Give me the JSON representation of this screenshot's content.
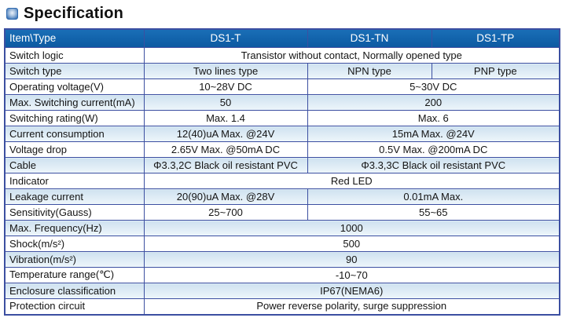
{
  "page": {
    "title": "Specification"
  },
  "colors": {
    "header_bg": "#1263ab",
    "border": "#3c4fa1",
    "shade_top": "#cfe2f0",
    "shade_bottom": "#eef6fb"
  },
  "table": {
    "header": {
      "item_col": "Item\\Type",
      "types": [
        "DS1-T",
        "DS1-TN",
        "DS1-TP"
      ]
    },
    "rows": [
      {
        "label": "Switch logic",
        "shaded": false,
        "cells": [
          {
            "text": "Transistor without contact, Normally opened type",
            "span": 3
          }
        ]
      },
      {
        "label": "Switch type",
        "shaded": true,
        "cells": [
          {
            "text": "Two lines type",
            "span": 1
          },
          {
            "text": "NPN type",
            "span": 1
          },
          {
            "text": "PNP type",
            "span": 1
          }
        ]
      },
      {
        "label": "Operating voltage(V)",
        "shaded": false,
        "cells": [
          {
            "text": "10~28V DC",
            "span": 1
          },
          {
            "text": "5~30V DC",
            "span": 2
          }
        ]
      },
      {
        "label": "Max. Switching current(mA)",
        "shaded": true,
        "cells": [
          {
            "text": "50",
            "span": 1
          },
          {
            "text": "200",
            "span": 2
          }
        ]
      },
      {
        "label": "Switching rating(W)",
        "shaded": false,
        "cells": [
          {
            "text": "Max. 1.4",
            "span": 1
          },
          {
            "text": "Max. 6",
            "span": 2
          }
        ]
      },
      {
        "label": "Current consumption",
        "shaded": true,
        "cells": [
          {
            "text": "12(40)uA Max. @24V",
            "span": 1
          },
          {
            "text": "15mA Max. @24V",
            "span": 2
          }
        ]
      },
      {
        "label": "Voltage drop",
        "shaded": false,
        "cells": [
          {
            "text": "2.65V Max. @50mA DC",
            "span": 1
          },
          {
            "text": "0.5V Max. @200mA DC",
            "span": 2
          }
        ]
      },
      {
        "label": "Cable",
        "shaded": true,
        "cells": [
          {
            "text": "Φ3.3,2C Black oil resistant PVC",
            "span": 1
          },
          {
            "text": "Φ3.3,3C Black oil resistant PVC",
            "span": 2
          }
        ]
      },
      {
        "label": "Indicator",
        "shaded": false,
        "cells": [
          {
            "text": "Red LED",
            "span": 3
          }
        ]
      },
      {
        "label": "Leakage current",
        "shaded": true,
        "cells": [
          {
            "text": "20(90)uA Max. @28V",
            "span": 1
          },
          {
            "text": "0.01mA Max.",
            "span": 2
          }
        ]
      },
      {
        "label": "Sensitivity(Gauss)",
        "shaded": false,
        "cells": [
          {
            "text": "25~700",
            "span": 1
          },
          {
            "text": "55~65",
            "span": 2
          }
        ]
      },
      {
        "label": "Max. Frequency(Hz)",
        "shaded": true,
        "cells": [
          {
            "text": "1000",
            "span": 3
          }
        ]
      },
      {
        "label": "Shock(m/s²)",
        "shaded": false,
        "cells": [
          {
            "text": "500",
            "span": 3
          }
        ]
      },
      {
        "label": "Vibration(m/s²)",
        "shaded": true,
        "cells": [
          {
            "text": "90",
            "span": 3
          }
        ]
      },
      {
        "label": "Temperature range(℃)",
        "shaded": false,
        "cells": [
          {
            "text": "-10~70",
            "span": 3
          }
        ]
      },
      {
        "label": "Enclosure classification",
        "shaded": true,
        "cells": [
          {
            "text": "IP67(NEMA6)",
            "span": 3
          }
        ]
      },
      {
        "label": "Protection circuit",
        "shaded": false,
        "cells": [
          {
            "text": "Power reverse polarity, surge suppression",
            "span": 3
          }
        ]
      }
    ]
  }
}
